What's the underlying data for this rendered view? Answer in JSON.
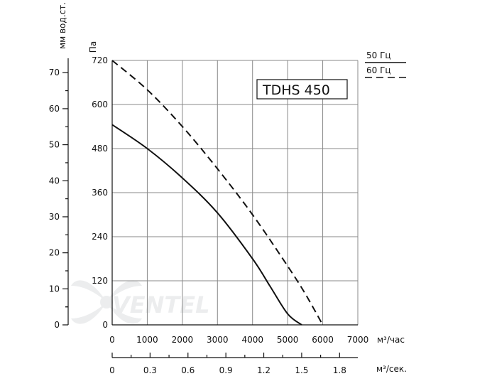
{
  "chart_data": {
    "type": "line",
    "title": "TDHS 450",
    "x": {
      "label": "м³/час",
      "range": [
        0,
        7000
      ],
      "ticks": [
        0,
        1000,
        2000,
        3000,
        4000,
        5000,
        6000,
        7000
      ]
    },
    "x_secondary": {
      "label": "м³/сек.",
      "ticks": [
        "0",
        "0.3",
        "0.6",
        "0.9",
        "1.2",
        "1.5",
        "1.8"
      ],
      "tick_values": [
        0,
        0.3,
        0.6,
        0.9,
        1.2,
        1.5,
        1.8
      ]
    },
    "y": {
      "label": "Па",
      "range": [
        0,
        720
      ],
      "ticks": [
        0,
        120,
        240,
        360,
        480,
        600,
        720
      ]
    },
    "y_secondary": {
      "label": "мм вод.ст.",
      "range": [
        0,
        73.4
      ],
      "ticks": [
        0,
        10,
        20,
        30,
        40,
        50,
        60,
        70
      ]
    },
    "grid": true,
    "legend_position": "top-right",
    "series": [
      {
        "name": "50 Гц",
        "style": "solid",
        "x": [
          0,
          1000,
          2000,
          3000,
          4000,
          4500,
          5000,
          5400
        ],
        "y": [
          545,
          480,
          400,
          305,
          180,
          105,
          30,
          0
        ]
      },
      {
        "name": "60 Гц",
        "style": "dashed",
        "x": [
          0,
          1000,
          2000,
          3000,
          4000,
          5000,
          5500,
          6000
        ],
        "y": [
          720,
          640,
          540,
          425,
          300,
          160,
          85,
          0
        ]
      }
    ]
  },
  "watermark": "VENTEL"
}
